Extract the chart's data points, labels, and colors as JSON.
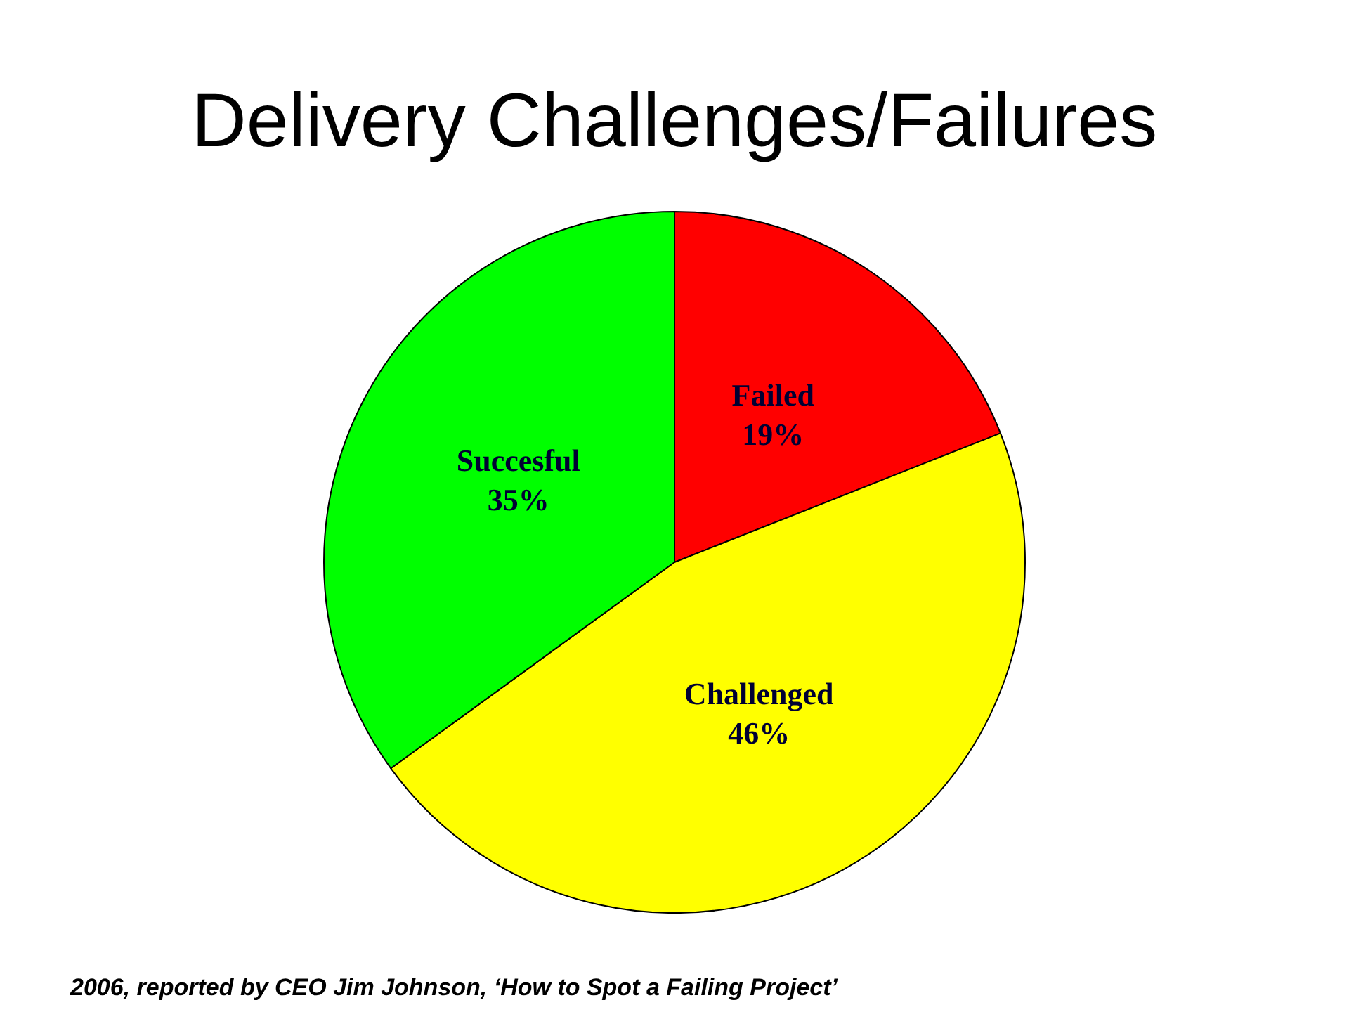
{
  "chart_data": {
    "type": "pie",
    "title": "Delivery Challenges/Failures",
    "categories": [
      "Failed",
      "Challenged",
      "Succesful"
    ],
    "values": [
      19,
      46,
      35
    ],
    "value_labels": [
      "19%",
      "46%",
      "35%"
    ],
    "colors": [
      "#ff0000",
      "#ffff00",
      "#00ff00"
    ],
    "legend": false,
    "annotations": [
      "2006, reported by CEO Jim Johnson, ‘How to Spot a Failing Project’"
    ]
  }
}
